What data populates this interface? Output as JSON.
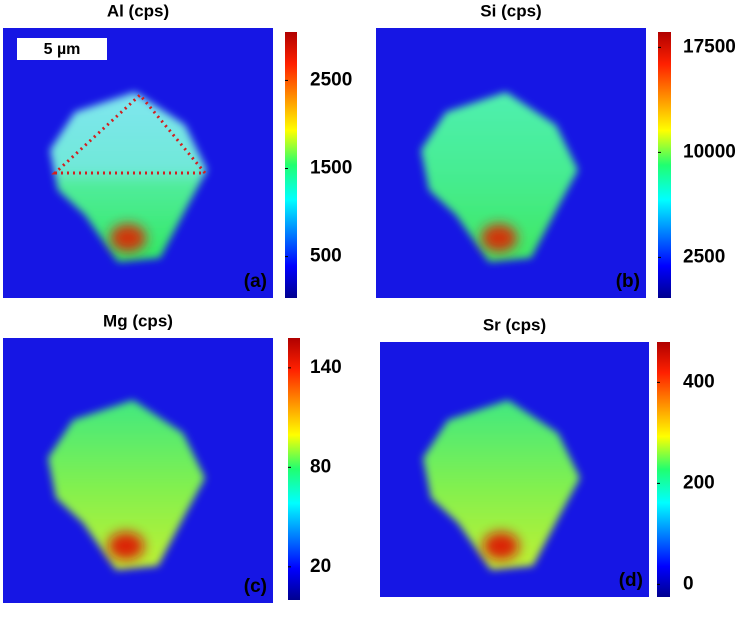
{
  "chart_data": [
    {
      "type": "heatmap",
      "title": "Al (cps)",
      "panel_label": "(a)",
      "annotation": "5 µm",
      "clim": [
        30,
        3050
      ],
      "cticks": [
        500,
        1500,
        2500
      ]
    },
    {
      "type": "heatmap",
      "title": "Si (cps)",
      "panel_label": "(b)",
      "clim": [
        -400,
        18600
      ],
      "cticks": [
        2500,
        10000,
        17500
      ]
    },
    {
      "type": "heatmap",
      "title": "Mg (cps)",
      "panel_label": "(c)",
      "clim": [
        0,
        158
      ],
      "cticks": [
        20,
        80,
        140
      ]
    },
    {
      "type": "heatmap",
      "title": "Sr (cps)",
      "panel_label": "(d)",
      "clim": [
        -25,
        480
      ],
      "cticks": [
        0,
        200,
        400
      ]
    }
  ]
}
